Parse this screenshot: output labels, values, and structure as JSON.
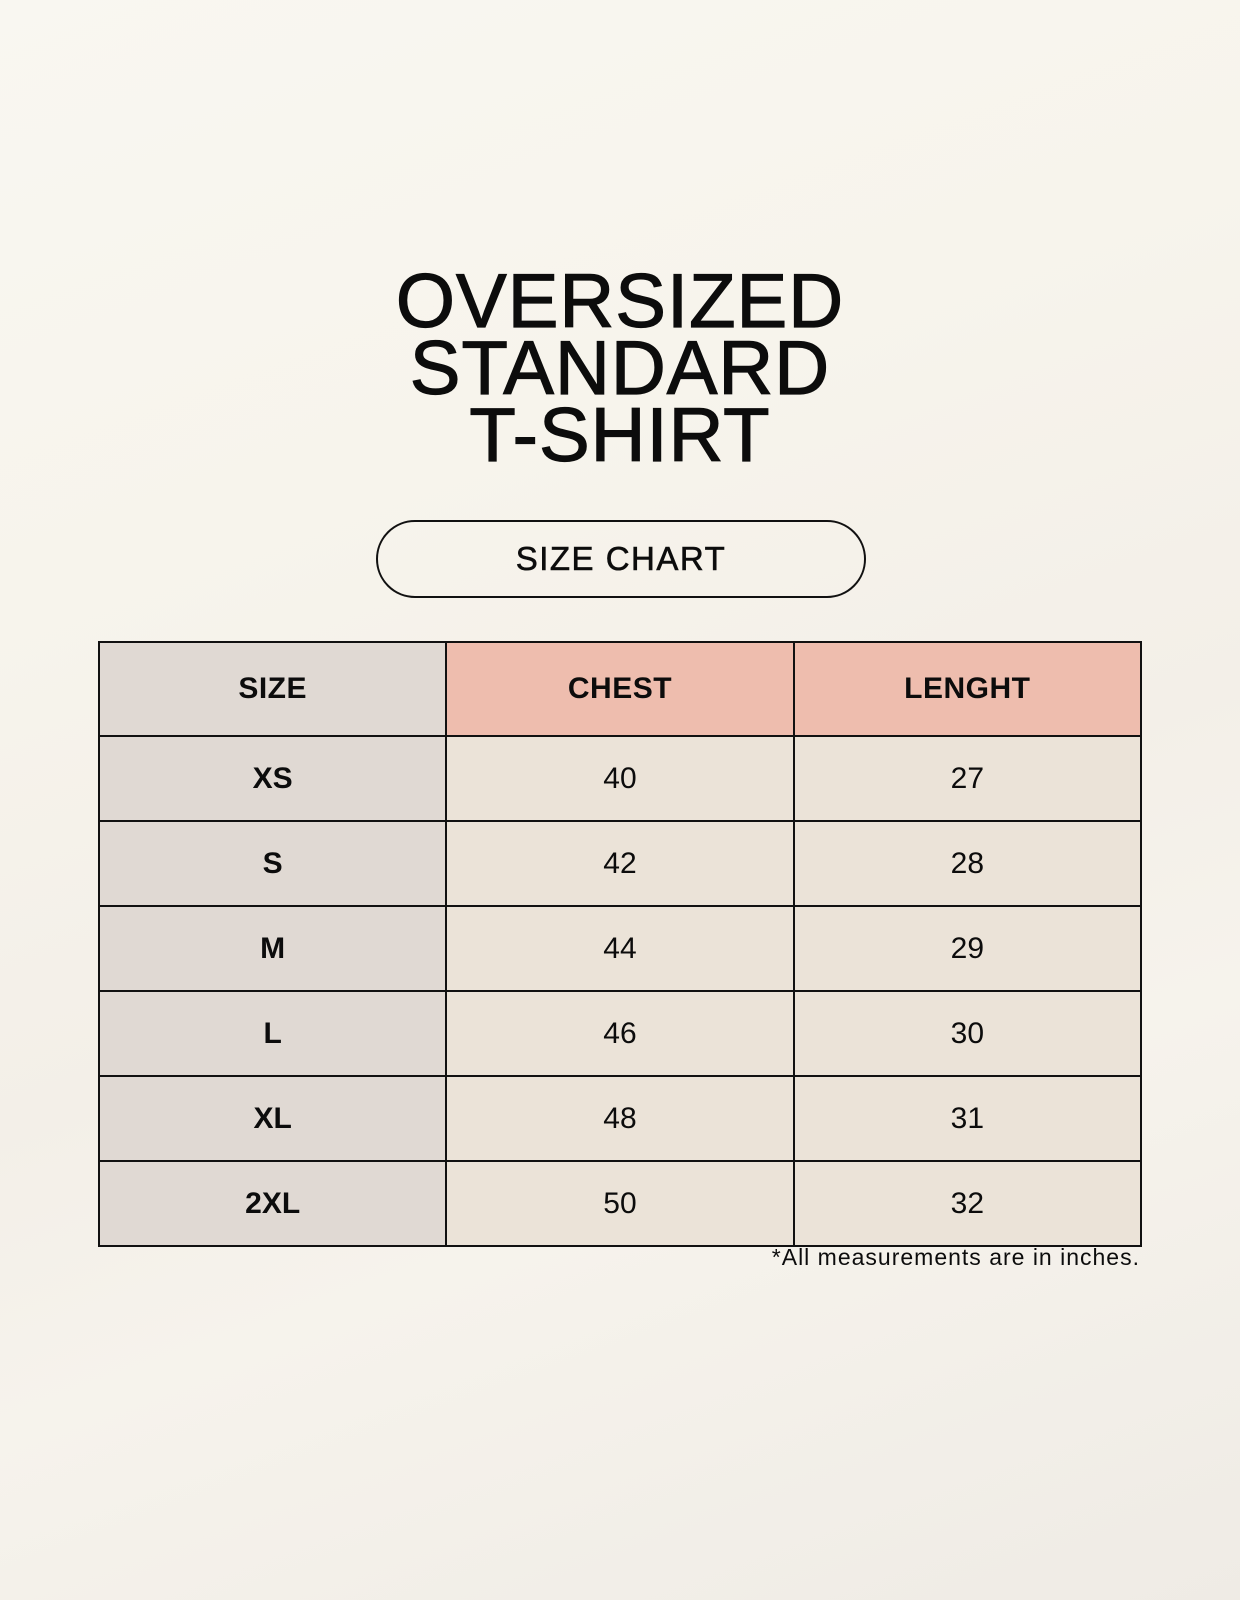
{
  "title_lines": [
    "OVERSIZED",
    "STANDARD",
    "T-SHIRT"
  ],
  "badge": "SIZE CHART",
  "table": {
    "headers": [
      "SIZE",
      "CHEST",
      "LENGHT"
    ],
    "rows": [
      [
        "XS",
        "40",
        "27"
      ],
      [
        "S",
        "42",
        "28"
      ],
      [
        "M",
        "44",
        "29"
      ],
      [
        "L",
        "46",
        "30"
      ],
      [
        "XL",
        "48",
        "31"
      ],
      [
        "2XL",
        "50",
        "32"
      ]
    ]
  },
  "footnote": "*All measurements are in inches.",
  "colors": {
    "size_column": "#e0d9d3",
    "header_accent": "#eebdae",
    "cell": "#ebe3d8"
  }
}
